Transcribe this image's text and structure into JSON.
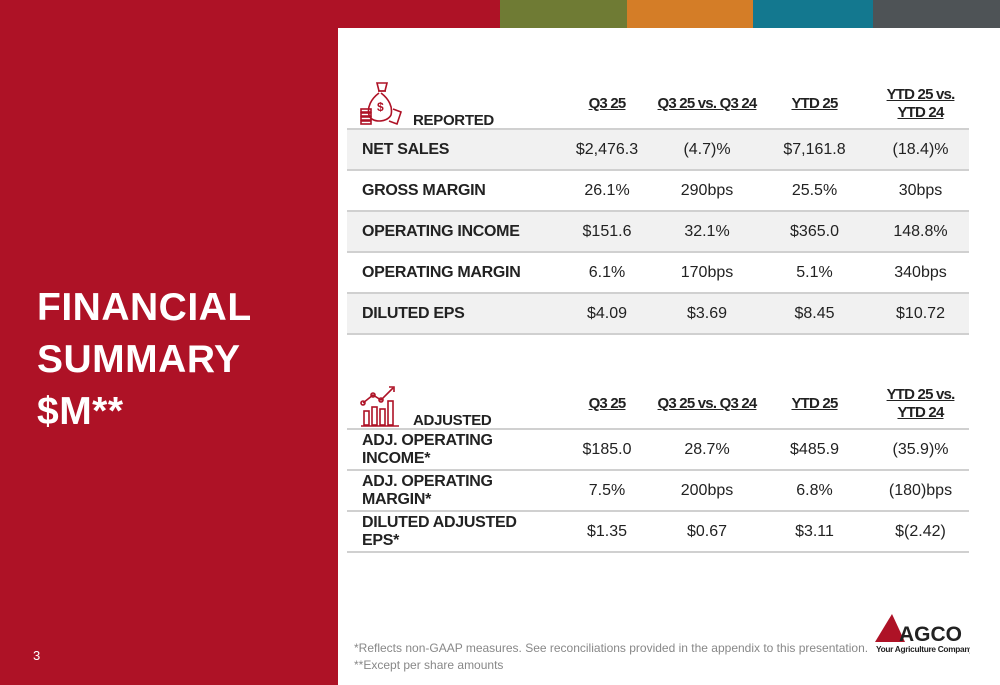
{
  "colors": {
    "red": "#ae1226",
    "olive": "#6f7b34",
    "orange": "#d47d27",
    "teal": "#13788f",
    "gray": "#4e5356"
  },
  "title_lines": [
    "FINANCIAL",
    "SUMMARY",
    "$M**"
  ],
  "page_number": "3",
  "columns": [
    "Q3 25",
    "Q3 25 vs. Q3 24",
    "YTD 25",
    "YTD 25 vs. YTD 24"
  ],
  "reported": {
    "label": "REPORTED",
    "icon": "money-bag-icon",
    "rows": [
      {
        "label": "NET SALES",
        "values": [
          "$2,476.3",
          "(4.7)%",
          "$7,161.8",
          "(18.4)%"
        ]
      },
      {
        "label": "GROSS MARGIN",
        "values": [
          "26.1%",
          "290bps",
          "25.5%",
          "30bps"
        ]
      },
      {
        "label": "OPERATING INCOME",
        "values": [
          "$151.6",
          "32.1%",
          "$365.0",
          "148.8%"
        ]
      },
      {
        "label": "OPERATING MARGIN",
        "values": [
          "6.1%",
          "170bps",
          "5.1%",
          "340bps"
        ]
      },
      {
        "label": "DILUTED EPS",
        "values": [
          "$4.09",
          "$3.69",
          "$8.45",
          "$10.72"
        ]
      }
    ]
  },
  "adjusted": {
    "label": "ADJUSTED",
    "icon": "growth-chart-icon",
    "rows": [
      {
        "label": "ADJ. OPERATING INCOME*",
        "values": [
          "$185.0",
          "28.7%",
          "$485.9",
          "(35.9)%"
        ]
      },
      {
        "label": "ADJ. OPERATING MARGIN*",
        "values": [
          "7.5%",
          "200bps",
          "6.8%",
          "(180)bps"
        ]
      },
      {
        "label": "DILUTED ADJUSTED EPS*",
        "values": [
          "$1.35",
          "$0.67",
          "$3.11",
          "$(2.42)"
        ]
      }
    ]
  },
  "footnotes": [
    "*Reflects non-GAAP measures. See reconciliations provided in the appendix to this presentation.",
    "**Except per share amounts"
  ],
  "logo": {
    "name": "AGCO",
    "tagline": "Your Agriculture Company"
  }
}
